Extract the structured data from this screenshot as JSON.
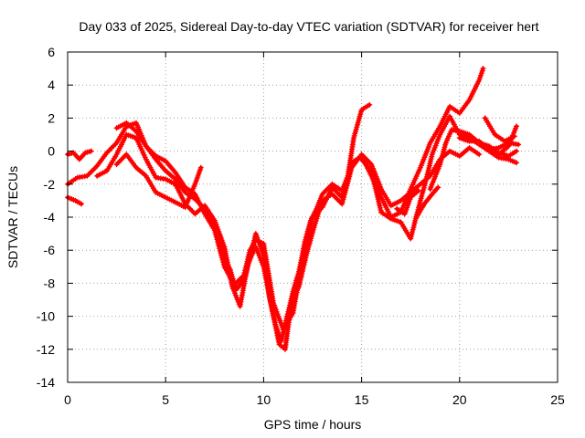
{
  "chart_data": {
    "type": "scatter",
    "title": "Day 033 of 2025, Sidereal Day-to-day VTEC variation (SDTVAR) for receiver hert",
    "xlabel": "GPS time / hours",
    "ylabel": "SDTVAR / TECUs",
    "xlim": [
      0,
      25
    ],
    "ylim": [
      -14,
      6
    ],
    "xticks": [
      0,
      5,
      10,
      15,
      20,
      25
    ],
    "yticks": [
      -14,
      -12,
      -10,
      -8,
      -6,
      -4,
      -2,
      0,
      2,
      4,
      6
    ],
    "grid": true,
    "marker": "+",
    "color": "#ff0000",
    "series": [
      {
        "values": [
          [
            0.0,
            -0.2
          ],
          [
            0.3,
            -0.1
          ],
          [
            0.6,
            -0.5
          ],
          [
            0.9,
            -0.1
          ],
          [
            1.2,
            0.0
          ]
        ]
      },
      {
        "values": [
          [
            0.0,
            -2.8
          ],
          [
            0.4,
            -3.0
          ],
          [
            0.7,
            -3.2
          ]
        ]
      },
      {
        "values": [
          [
            0.0,
            -2.0
          ],
          [
            0.5,
            -1.6
          ],
          [
            1.0,
            -1.5
          ],
          [
            1.5,
            -0.9
          ],
          [
            2.0,
            -0.1
          ],
          [
            2.5,
            0.5
          ],
          [
            3.0,
            1.5
          ],
          [
            3.5,
            1.7
          ],
          [
            4.0,
            0.3
          ],
          [
            4.5,
            -0.5
          ],
          [
            5.0,
            -1.2
          ],
          [
            5.5,
            -1.7
          ],
          [
            6.0,
            -2.5
          ],
          [
            6.5,
            -2.9
          ],
          [
            7.0,
            -3.5
          ],
          [
            7.5,
            -4.5
          ],
          [
            8.0,
            -6.5
          ],
          [
            8.3,
            -7.2
          ],
          [
            8.6,
            -8.4
          ],
          [
            9.0,
            -7.8
          ],
          [
            9.3,
            -6.5
          ],
          [
            9.6,
            -5.0
          ],
          [
            10.0,
            -6.3
          ],
          [
            10.3,
            -8.8
          ],
          [
            10.6,
            -10.5
          ],
          [
            10.9,
            -11.5
          ],
          [
            11.2,
            -10.0
          ],
          [
            11.5,
            -8.5
          ],
          [
            11.8,
            -7.3
          ],
          [
            12.1,
            -5.5
          ],
          [
            12.4,
            -4.2
          ],
          [
            12.7,
            -3.5
          ],
          [
            13.0,
            -2.6
          ],
          [
            13.5,
            -2.0
          ],
          [
            14.0,
            -2.4
          ],
          [
            14.3,
            -1.5
          ],
          [
            14.6,
            0.8
          ],
          [
            15.0,
            2.5
          ],
          [
            15.4,
            2.8
          ]
        ]
      },
      {
        "values": [
          [
            1.5,
            -1.5
          ],
          [
            2.0,
            -1.2
          ],
          [
            2.5,
            -0.2
          ],
          [
            3.0,
            1.0
          ],
          [
            3.5,
            0.8
          ],
          [
            4.0,
            -0.5
          ],
          [
            4.5,
            -1.6
          ],
          [
            5.0,
            -1.7
          ],
          [
            5.5,
            -2.0
          ],
          [
            6.0,
            -3.2
          ],
          [
            6.5,
            -3.8
          ],
          [
            7.0,
            -3.3
          ],
          [
            7.5,
            -4.2
          ],
          [
            8.0,
            -5.8
          ],
          [
            8.4,
            -8.2
          ],
          [
            8.8,
            -9.4
          ],
          [
            9.2,
            -6.8
          ],
          [
            9.6,
            -5.8
          ],
          [
            10.0,
            -7.0
          ],
          [
            10.4,
            -9.4
          ],
          [
            10.8,
            -11.7
          ],
          [
            11.1,
            -12.0
          ],
          [
            11.4,
            -9.3
          ],
          [
            11.8,
            -8.2
          ],
          [
            12.2,
            -6.2
          ],
          [
            12.6,
            -4.5
          ],
          [
            13.0,
            -3.0
          ],
          [
            13.5,
            -2.6
          ],
          [
            14.0,
            -3.2
          ],
          [
            14.5,
            -1.0
          ],
          [
            15.0,
            -0.2
          ],
          [
            15.5,
            -0.8
          ],
          [
            16.0,
            -2.3
          ],
          [
            16.5,
            -3.3
          ],
          [
            17.0,
            -3.0
          ],
          [
            17.5,
            -2.5
          ],
          [
            18.0,
            -2.0
          ],
          [
            18.5,
            -1.5
          ],
          [
            19.0,
            -0.5
          ],
          [
            19.5,
            0.0
          ],
          [
            20.0,
            -0.3
          ],
          [
            20.5,
            0.2
          ],
          [
            21.0,
            -0.2
          ]
        ]
      },
      {
        "values": [
          [
            2.5,
            -0.8
          ],
          [
            3.0,
            -0.2
          ],
          [
            3.5,
            -1.0
          ],
          [
            4.0,
            -1.5
          ],
          [
            4.5,
            -2.5
          ],
          [
            5.0,
            -2.8
          ],
          [
            5.5,
            -3.1
          ],
          [
            6.0,
            -3.4
          ],
          [
            6.5,
            -2.0
          ],
          [
            6.8,
            -1.0
          ]
        ]
      },
      {
        "values": [
          [
            2.5,
            1.4
          ],
          [
            3.0,
            1.7
          ],
          [
            3.5,
            1.2
          ],
          [
            4.0,
            0.3
          ],
          [
            4.5,
            -0.3
          ],
          [
            5.0,
            -0.6
          ],
          [
            5.5,
            -1.3
          ],
          [
            6.0,
            -2.2
          ],
          [
            6.5,
            -2.6
          ],
          [
            7.0,
            -3.8
          ],
          [
            7.5,
            -4.8
          ],
          [
            8.0,
            -7.0
          ],
          [
            8.5,
            -8.1
          ],
          [
            9.0,
            -7.5
          ],
          [
            9.3,
            -6.0
          ],
          [
            9.6,
            -5.4
          ],
          [
            10.0,
            -5.6
          ],
          [
            10.5,
            -9.2
          ],
          [
            11.0,
            -10.8
          ],
          [
            11.5,
            -9.8
          ],
          [
            12.0,
            -6.5
          ],
          [
            12.5,
            -4.0
          ],
          [
            13.0,
            -3.4
          ],
          [
            13.5,
            -2.2
          ],
          [
            14.0,
            -2.8
          ],
          [
            14.5,
            -0.7
          ],
          [
            15.0,
            -0.3
          ],
          [
            15.5,
            -1.5
          ],
          [
            16.0,
            -2.8
          ],
          [
            16.5,
            -4.0
          ],
          [
            17.0,
            -3.7
          ],
          [
            17.5,
            -2.3
          ],
          [
            18.0,
            -1.0
          ],
          [
            18.5,
            0.5
          ],
          [
            19.0,
            1.5
          ],
          [
            19.5,
            2.7
          ],
          [
            20.0,
            2.3
          ],
          [
            20.5,
            3.1
          ],
          [
            21.0,
            4.3
          ],
          [
            21.2,
            5.0
          ]
        ]
      },
      {
        "values": [
          [
            15.0,
            -0.5
          ],
          [
            15.5,
            -1.2
          ],
          [
            16.0,
            -3.7
          ],
          [
            16.5,
            -4.1
          ],
          [
            17.0,
            -4.3
          ],
          [
            17.5,
            -5.3
          ],
          [
            18.0,
            -3.0
          ],
          [
            18.3,
            -1.7
          ],
          [
            18.6,
            -0.2
          ],
          [
            19.0,
            1.0
          ],
          [
            19.5,
            2.1
          ],
          [
            20.0,
            1.0
          ],
          [
            20.5,
            0.8
          ],
          [
            21.0,
            0.4
          ],
          [
            21.5,
            0.0
          ],
          [
            22.0,
            -0.4
          ],
          [
            22.5,
            -0.5
          ],
          [
            22.9,
            -0.7
          ]
        ]
      },
      {
        "values": [
          [
            18.5,
            -2.3
          ],
          [
            19.0,
            -0.8
          ],
          [
            19.3,
            0.5
          ],
          [
            19.6,
            1.3
          ],
          [
            20.0,
            1.2
          ],
          [
            20.5,
            1.0
          ],
          [
            21.0,
            0.5
          ],
          [
            21.5,
            0.3
          ],
          [
            22.0,
            -0.2
          ],
          [
            22.5,
            0.3
          ],
          [
            22.9,
            1.5
          ]
        ]
      },
      {
        "values": [
          [
            20.0,
            0.8
          ],
          [
            20.5,
            0.6
          ],
          [
            21.0,
            0.6
          ],
          [
            21.5,
            0.1
          ],
          [
            22.0,
            0.2
          ],
          [
            22.5,
            0.5
          ],
          [
            23.0,
            0.4
          ]
        ]
      },
      {
        "values": [
          [
            21.3,
            2.0
          ],
          [
            21.8,
            1.0
          ],
          [
            22.3,
            0.6
          ],
          [
            22.8,
            0.9
          ]
        ]
      },
      {
        "values": [
          [
            21.5,
            0.3
          ],
          [
            22.0,
            -0.1
          ],
          [
            22.5,
            -0.3
          ],
          [
            22.9,
            0.0
          ]
        ]
      },
      {
        "values": [
          [
            17.8,
            -4.0
          ],
          [
            18.2,
            -3.2
          ],
          [
            18.6,
            -2.6
          ],
          [
            18.9,
            -2.2
          ]
        ]
      },
      {
        "values": [
          [
            16.8,
            -3.5
          ],
          [
            17.2,
            -3.8
          ],
          [
            17.5,
            -2.8
          ],
          [
            17.9,
            -2.4
          ]
        ]
      }
    ]
  }
}
